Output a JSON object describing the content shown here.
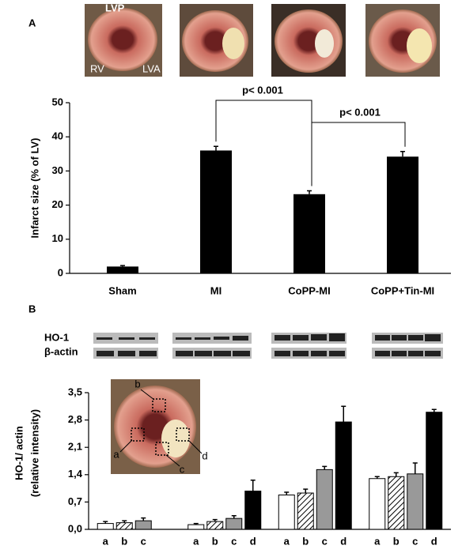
{
  "chart_data": [
    {
      "type": "bar",
      "panel": "A",
      "photo_labels": [
        "LVP",
        "RV",
        "LVA"
      ],
      "y_label": "Infarct size (% of LV)",
      "categories": [
        "Sham",
        "MI",
        "CoPP-MI",
        "CoPP+Tin-MI"
      ],
      "values": [
        2,
        36,
        23.2,
        34.2
      ],
      "errors": [
        0.3,
        1.2,
        1.0,
        1.5
      ],
      "color": "#000000",
      "ylim": [
        0,
        50
      ],
      "yticks": [
        0,
        10,
        20,
        30,
        40,
        50
      ],
      "annotations": [
        "p< 0.001",
        "p< 0.001"
      ]
    },
    {
      "type": "grouped_bar",
      "panel": "B",
      "blot_labels": [
        "HO-1",
        "β-actin"
      ],
      "y_label": [
        "HO-1/ actin",
        "(relative intensity)"
      ],
      "categories": [
        null,
        null,
        null,
        null
      ],
      "series": [
        {
          "name": "a",
          "color": "#ffffff",
          "values": [
            0.15,
            0.12,
            0.88,
            1.3
          ],
          "errors": [
            0.05,
            0.03,
            0.07,
            0.05
          ]
        },
        {
          "name": "b",
          "color": "#ffffff",
          "hatch": true,
          "values": [
            0.17,
            0.2,
            0.93,
            1.35
          ],
          "errors": [
            0.05,
            0.05,
            0.1,
            0.1
          ]
        },
        {
          "name": "c",
          "color": "#999999",
          "values": [
            0.22,
            0.28,
            1.53,
            1.42
          ],
          "errors": [
            0.07,
            0.07,
            0.08,
            0.28
          ]
        },
        {
          "name": "d",
          "color": "#000000",
          "values": [
            null,
            0.98,
            2.75,
            3.0
          ],
          "errors": [
            null,
            0.28,
            0.4,
            0.07
          ]
        }
      ],
      "ylim": [
        0,
        3.5
      ],
      "yticks": [
        {
          "value": 0,
          "label": "0,0"
        },
        {
          "value": 0.7,
          "label": "0,7"
        },
        {
          "value": 1.4,
          "label": "1,4"
        },
        {
          "value": 2.1,
          "label": "2,1"
        },
        {
          "value": 2.8,
          "label": "2,8"
        },
        {
          "value": 3.5,
          "label": "3,5"
        }
      ]
    }
  ]
}
